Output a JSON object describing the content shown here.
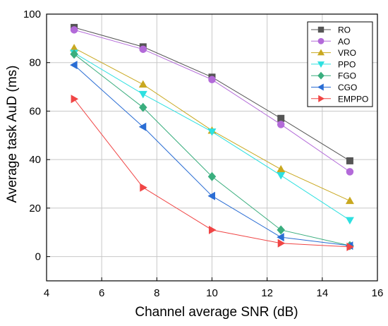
{
  "chart_data": {
    "type": "line",
    "title": "",
    "xlabel": "Channel average SNR (dB)",
    "ylabel": "Average task AuD (ms)",
    "xlim": [
      4,
      16
    ],
    "ylim": [
      -10,
      100
    ],
    "xticks": [
      4,
      6,
      8,
      10,
      12,
      14,
      16
    ],
    "yticks": [
      0,
      20,
      40,
      60,
      80,
      100
    ],
    "grid": true,
    "legend_position": "top-right",
    "x": [
      5,
      7.5,
      10,
      12.5,
      15
    ],
    "series": [
      {
        "name": "RO",
        "values": [
          94.5,
          86.5,
          74,
          57,
          39.5
        ],
        "color": "#555555",
        "marker": "square"
      },
      {
        "name": "AO",
        "values": [
          93.5,
          85.5,
          73,
          54.5,
          35
        ],
        "color": "#b36ad9",
        "marker": "circle"
      },
      {
        "name": "VRO",
        "values": [
          86,
          71,
          52,
          36,
          23
        ],
        "color": "#c9a820",
        "marker": "triangle-up"
      },
      {
        "name": "PPO",
        "values": [
          84,
          67,
          51.5,
          33.5,
          15
        ],
        "color": "#2de0e0",
        "marker": "triangle-down"
      },
      {
        "name": "FGO",
        "values": [
          83.5,
          61.5,
          33,
          11,
          4.5
        ],
        "color": "#3aae7e",
        "marker": "diamond"
      },
      {
        "name": "CGO",
        "values": [
          79,
          53.5,
          25,
          8,
          4.5
        ],
        "color": "#2a6dd4",
        "marker": "triangle-left"
      },
      {
        "name": "EMPPO",
        "values": [
          65,
          28.5,
          11,
          5.5,
          4
        ],
        "color": "#f04545",
        "marker": "triangle-right"
      }
    ]
  }
}
